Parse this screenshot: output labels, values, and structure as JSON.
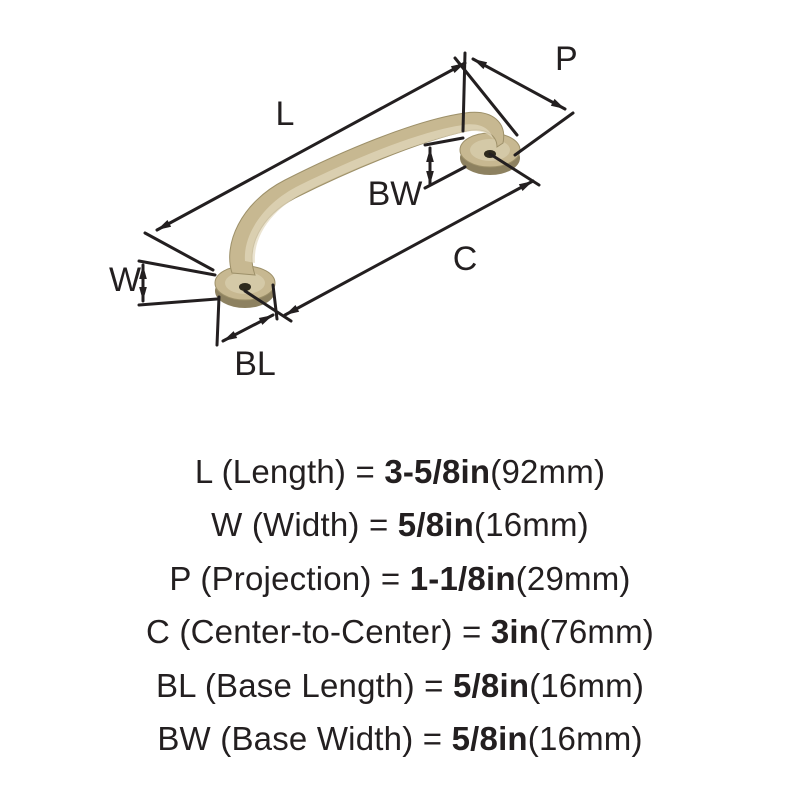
{
  "diagram": {
    "type": "dimensioned-isometric",
    "stroke_color": "#231f20",
    "stroke_width": 3,
    "arrow_len": 14,
    "label_fontsize": 34,
    "handle": {
      "body_fill": "#c7b891",
      "body_stroke": "#9d9069",
      "highlight": "#e2d9be",
      "shadow": "#8d8160",
      "screw_fill": "#2e2a1d"
    },
    "dims": {
      "L": {
        "label": "L"
      },
      "W": {
        "label": "W"
      },
      "P": {
        "label": "P"
      },
      "C": {
        "label": "C"
      },
      "BL": {
        "label": "BL"
      },
      "BW": {
        "label": "BW"
      }
    }
  },
  "specs": [
    {
      "code": "L",
      "name": "Length",
      "imperial": "3-5/8in",
      "metric": "92mm"
    },
    {
      "code": "W",
      "name": "Width",
      "imperial": "5/8in",
      "metric": "16mm"
    },
    {
      "code": "P",
      "name": "Projection",
      "imperial": "1-1/8in",
      "metric": "29mm"
    },
    {
      "code": "C",
      "name": "Center-to-Center",
      "imperial": "3in",
      "metric": "76mm"
    },
    {
      "code": "BL",
      "name": "Base Length",
      "imperial": "5/8in",
      "metric": "16mm"
    },
    {
      "code": "BW",
      "name": "Base Width",
      "imperial": "5/8in",
      "metric": "16mm"
    }
  ]
}
